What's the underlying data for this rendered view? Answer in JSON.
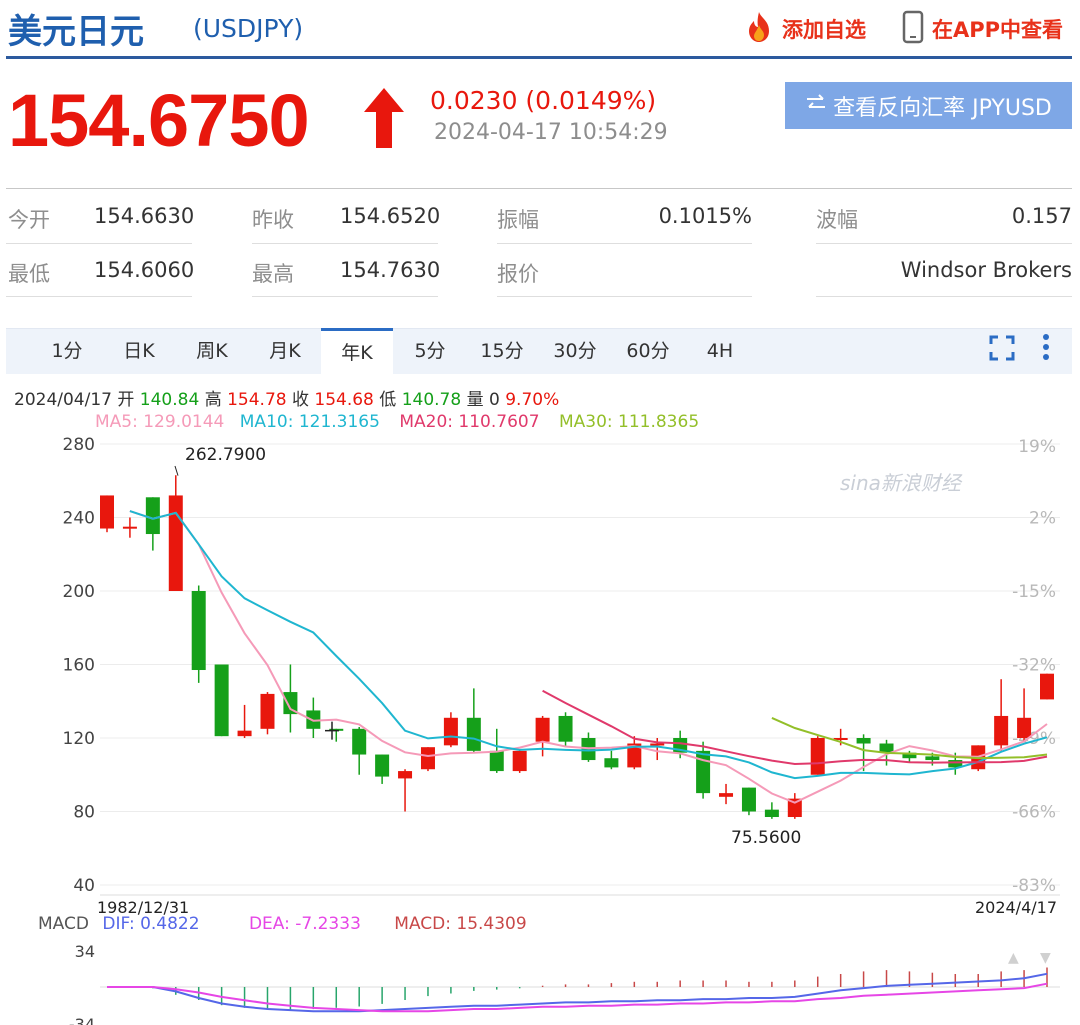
{
  "header": {
    "title": "美元日元",
    "code": "(USDJPY)",
    "add_watch": "添加自选",
    "app_view": "在APP中查看"
  },
  "quote": {
    "price": "154.6750",
    "change": "0.0230 (0.0149%)",
    "timestamp": "2024-04-17 10:54:29",
    "reverse_button": "查看反向汇率 JPYUSD",
    "direction": "up",
    "up_color": "#e8170d"
  },
  "stats": {
    "open_label": "今开",
    "open": "154.6630",
    "prev_close_label": "昨收",
    "prev_close": "154.6520",
    "amplitude_label": "振幅",
    "amplitude": "0.1015%",
    "wave_label": "波幅",
    "wave": "0.157",
    "low_label": "最低",
    "low": "154.6060",
    "high_label": "最高",
    "high": "154.7630",
    "quote_label": "报价",
    "quote_source": "Windsor Brokers"
  },
  "tabs": [
    "1分",
    "日K",
    "周K",
    "月K",
    "年K",
    "5分",
    "15分",
    "30分",
    "60分",
    "4H"
  ],
  "active_tab": "年K",
  "kline_info": {
    "date": "2024/04/17",
    "open_label": "开",
    "open": "140.84",
    "high_label": "高",
    "high": "154.78",
    "close_label": "收",
    "close": "154.68",
    "low_label": "低",
    "low": "140.78",
    "vol_label": "量",
    "vol": "0",
    "pct": "9.70%"
  },
  "ma_info": {
    "ma5": "MA5: 129.0144",
    "ma10": "MA10: 121.3165",
    "ma20": "MA20: 110.7607",
    "ma30": "MA30: 111.8365",
    "colors": {
      "ma5": "#f59ab8",
      "ma10": "#1fb6d0",
      "ma20": "#e0396b",
      "ma30": "#93bf29"
    }
  },
  "macd_info": {
    "label": "MACD",
    "dif": "DIF: 0.4822",
    "dea": "DEA: -7.2333",
    "macd": "MACD: 15.4309"
  },
  "chart_data": {
    "type": "candlestick",
    "y_ticks": [
      "280",
      "240",
      "200",
      "160",
      "120",
      "80",
      "40"
    ],
    "ylim": [
      40,
      280
    ],
    "pct_ticks": [
      "19%",
      "2%",
      "-15%",
      "-32%",
      "-49%",
      "-66%",
      "-83%"
    ],
    "x_start_label": "1982/12/31",
    "x_end_label": "2024/4/17",
    "max_label": "262.7900",
    "min_label": "75.5600",
    "watermark": "sina新浪财经",
    "candles": [
      {
        "o": 234,
        "h": 252,
        "l": 232,
        "c": 252
      },
      {
        "o": 235,
        "h": 240,
        "l": 229,
        "c": 235
      },
      {
        "o": 251,
        "h": 251,
        "l": 222,
        "c": 231
      },
      {
        "o": 200,
        "h": 263,
        "l": 200,
        "c": 252
      },
      {
        "o": 200,
        "h": 203,
        "l": 150,
        "c": 157
      },
      {
        "o": 160,
        "h": 160,
        "l": 121,
        "c": 121
      },
      {
        "o": 121,
        "h": 138,
        "l": 120,
        "c": 124
      },
      {
        "o": 125,
        "h": 145,
        "l": 122,
        "c": 144
      },
      {
        "o": 145,
        "h": 160,
        "l": 123,
        "c": 133
      },
      {
        "o": 135,
        "h": 142,
        "l": 120,
        "c": 125
      },
      {
        "o": 125,
        "h": 125,
        "l": 118,
        "c": 124
      },
      {
        "o": 125,
        "h": 126,
        "l": 100,
        "c": 111
      },
      {
        "o": 111,
        "h": 111,
        "l": 95,
        "c": 99
      },
      {
        "o": 98,
        "h": 103,
        "l": 80,
        "c": 102
      },
      {
        "o": 103,
        "h": 115,
        "l": 102,
        "c": 115
      },
      {
        "o": 116,
        "h": 134,
        "l": 115,
        "c": 131
      },
      {
        "o": 131,
        "h": 147,
        "l": 112,
        "c": 113
      },
      {
        "o": 113,
        "h": 125,
        "l": 101,
        "c": 102
      },
      {
        "o": 102,
        "h": 114,
        "l": 101,
        "c": 113
      },
      {
        "o": 118,
        "h": 132,
        "l": 110,
        "c": 131
      },
      {
        "o": 132,
        "h": 134,
        "l": 115,
        "c": 118
      },
      {
        "o": 120,
        "h": 123,
        "l": 107,
        "c": 108
      },
      {
        "o": 109,
        "h": 113,
        "l": 103,
        "c": 104
      },
      {
        "o": 104,
        "h": 121,
        "l": 103,
        "c": 117
      },
      {
        "o": 117,
        "h": 120,
        "l": 108,
        "c": 117
      },
      {
        "o": 120,
        "h": 124,
        "l": 109,
        "c": 112
      },
      {
        "o": 113,
        "h": 118,
        "l": 87,
        "c": 90
      },
      {
        "o": 88,
        "h": 95,
        "l": 84,
        "c": 90
      },
      {
        "o": 93,
        "h": 93,
        "l": 78,
        "c": 80
      },
      {
        "o": 81,
        "h": 85,
        "l": 76,
        "c": 77
      },
      {
        "o": 77,
        "h": 90,
        "l": 76,
        "c": 87
      },
      {
        "o": 100,
        "h": 121,
        "l": 100,
        "c": 120
      },
      {
        "o": 120,
        "h": 125,
        "l": 116,
        "c": 120
      },
      {
        "o": 120,
        "h": 122,
        "l": 102,
        "c": 117
      },
      {
        "o": 117,
        "h": 119,
        "l": 105,
        "c": 112
      },
      {
        "o": 112,
        "h": 113,
        "l": 107,
        "c": 109
      },
      {
        "o": 110,
        "h": 112,
        "l": 105,
        "c": 108
      },
      {
        "o": 108,
        "h": 112,
        "l": 100,
        "c": 104
      },
      {
        "o": 103,
        "h": 116,
        "l": 102,
        "c": 116
      },
      {
        "o": 116,
        "h": 152,
        "l": 113,
        "c": 132
      },
      {
        "o": 120,
        "h": 147,
        "l": 118,
        "c": 131
      },
      {
        "o": 141,
        "h": 155,
        "l": 141,
        "c": 155
      }
    ],
    "series": [
      {
        "name": "MA5",
        "values": [
          null,
          null,
          null,
          null,
          null,
          null,
          null,
          null,
          null,
          null,
          null,
          null,
          null,
          null,
          null,
          null,
          null,
          null,
          null,
          null,
          null,
          null,
          null,
          null,
          null,
          null,
          null,
          null,
          null,
          null,
          null,
          null,
          null,
          null,
          null,
          null,
          null,
          null,
          null,
          null,
          null,
          129.0
        ]
      },
      {
        "name": "MA10",
        "values": [
          null,
          null,
          null,
          null,
          null,
          null,
          null,
          null,
          null,
          null,
          null,
          null,
          null,
          null,
          null,
          null,
          null,
          null,
          null,
          null,
          null,
          null,
          null,
          null,
          null,
          null,
          null,
          null,
          null,
          null,
          null,
          null,
          null,
          null,
          null,
          null,
          null,
          null,
          null,
          null,
          null,
          121.3
        ]
      },
      {
        "name": "MA20",
        "values": [
          null,
          null,
          null,
          null,
          null,
          null,
          null,
          null,
          null,
          null,
          null,
          null,
          null,
          null,
          null,
          null,
          null,
          null,
          null,
          null,
          null,
          null,
          null,
          null,
          null,
          null,
          null,
          null,
          null,
          null,
          null,
          null,
          null,
          null,
          null,
          null,
          null,
          null,
          null,
          null,
          null,
          110.8
        ]
      },
      {
        "name": "MA30",
        "values": [
          null,
          null,
          null,
          null,
          null,
          null,
          null,
          null,
          null,
          null,
          null,
          null,
          null,
          null,
          null,
          null,
          null,
          null,
          null,
          null,
          null,
          null,
          null,
          null,
          null,
          null,
          null,
          null,
          null,
          null,
          null,
          null,
          null,
          null,
          null,
          null,
          null,
          null,
          null,
          null,
          null,
          111.8
        ]
      }
    ],
    "macd_ticks": [
      "34",
      "-34"
    ],
    "macd_bars": [
      0,
      0,
      -1,
      -6,
      -10,
      -14,
      -16,
      -17,
      -18,
      -17,
      -16,
      -15,
      -13,
      -10,
      -7,
      -5,
      -3,
      -2,
      -1,
      1,
      2,
      2,
      3,
      4,
      4,
      5,
      5,
      5,
      4,
      4,
      5,
      8,
      10,
      12,
      13,
      12,
      11,
      10,
      10,
      12,
      13,
      15
    ],
    "up_color": "#e8170d",
    "down_color": "#15a01a"
  }
}
